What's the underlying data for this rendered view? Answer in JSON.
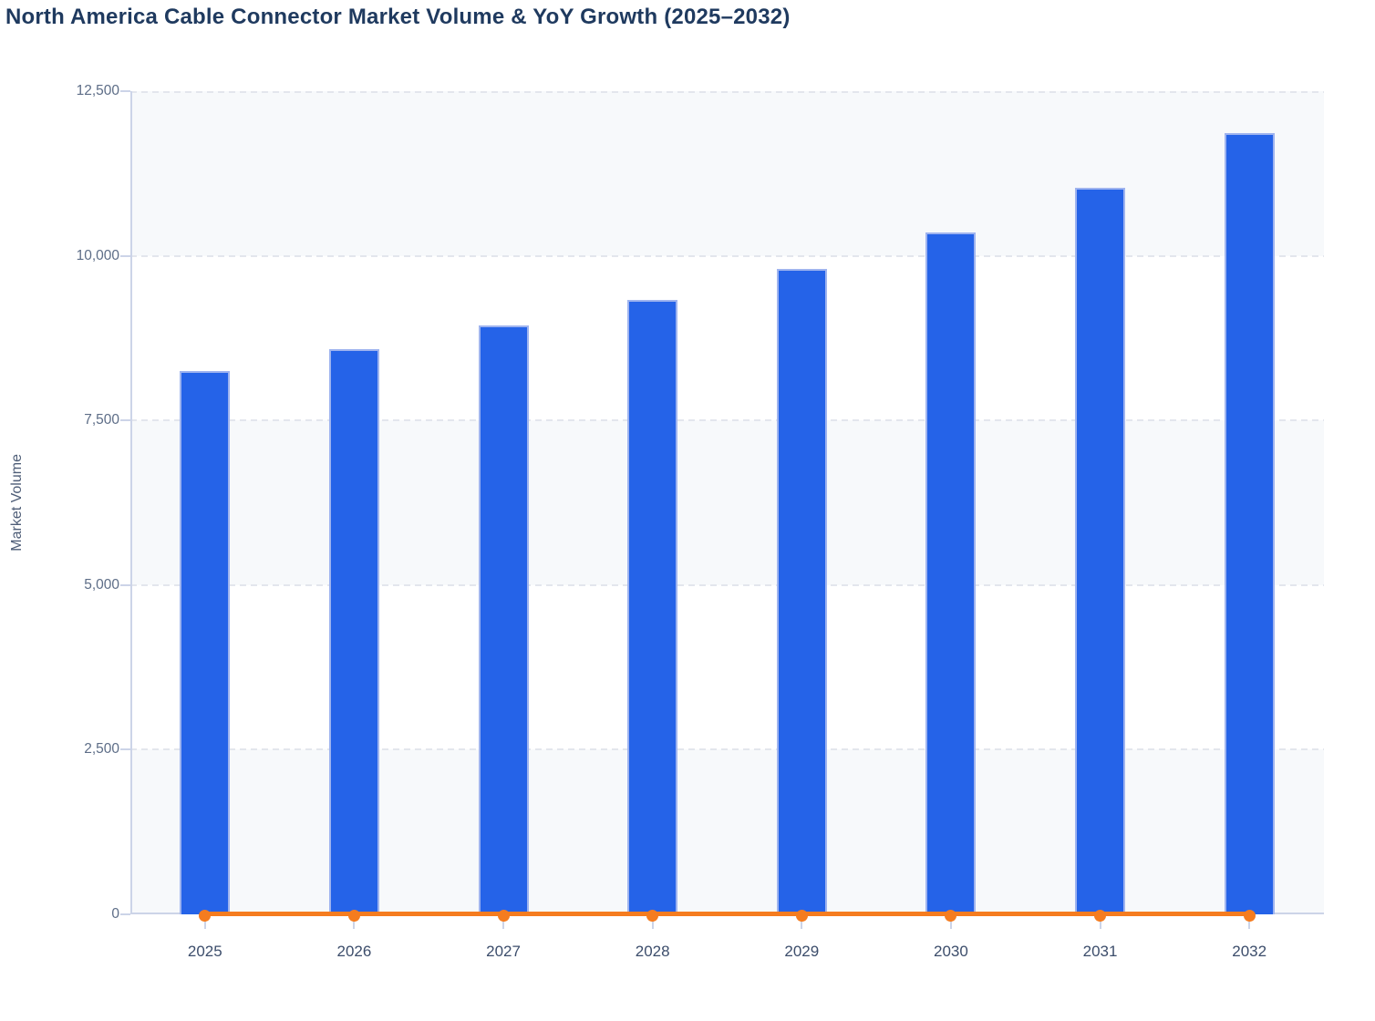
{
  "title": "North America Cable Connector Market Volume & YoY Growth (2025–2032)",
  "y_axis": {
    "label": "Market Volume",
    "tick_labels_top_to_bottom": [
      "12,500",
      "10,000",
      "7,500",
      "5,000",
      "2,500",
      "0"
    ]
  },
  "x_axis": {
    "tick_labels": [
      "2025",
      "2026",
      "2027",
      "2028",
      "2029",
      "2030",
      "2031",
      "2032"
    ]
  },
  "colors": {
    "bar_fill": "#2563e8",
    "bar_border": "#9fb4ef",
    "line": "#f57c1f",
    "title_text": "#1f3a5f",
    "y_tick_text": "#5d6d87",
    "x_tick_text": "#3c4d6b",
    "band_fill": "#f7f9fb",
    "grid_line": "#e3e6ed",
    "axis_line": "#ccd4e8"
  },
  "chart_data": {
    "type": "bar",
    "title": "North America Cable Connector Market Volume & YoY Growth (2025–2032)",
    "categories": [
      "2025",
      "2026",
      "2027",
      "2028",
      "2029",
      "2030",
      "2031",
      "2032"
    ],
    "series": [
      {
        "name": "Market Volume",
        "type": "bar",
        "values": [
          8250,
          8580,
          8940,
          9330,
          9800,
          10360,
          11030,
          11870
        ]
      },
      {
        "name": "YoY Growth",
        "type": "line",
        "values": [
          0,
          0,
          0,
          0,
          0,
          0,
          0,
          0
        ],
        "note": "line renders flat at ~0 on the shared Market Volume axis"
      }
    ],
    "xlabel": "",
    "ylabel": "Market Volume",
    "ylim": [
      0,
      12500
    ],
    "yticks": [
      0,
      2500,
      5000,
      7500,
      10000,
      12500
    ],
    "grid": true,
    "legend": false,
    "plot_background": "alternating horizontal stripes, light gray / white"
  }
}
